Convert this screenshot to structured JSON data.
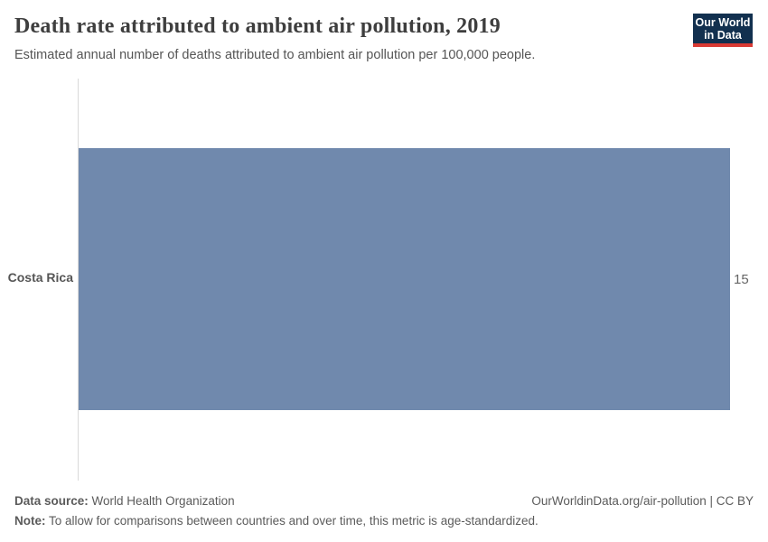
{
  "header": {
    "title": "Death rate attributed to ambient air pollution, 2019",
    "subtitle": "Estimated annual number of deaths attributed to ambient air pollution per 100,000 people.",
    "logo": {
      "line1": "Our World",
      "line2": "in Data",
      "bg_color": "#12304f",
      "accent_color": "#d93a34"
    }
  },
  "chart_data": {
    "type": "bar",
    "orientation": "horizontal",
    "title": "Death rate attributed to ambient air pollution, 2019",
    "categories": [
      "Costa Rica"
    ],
    "values": [
      15
    ],
    "xlim": [
      0,
      15
    ],
    "bar_color": "#7089ad",
    "axis_color": "#d9d9d9",
    "grid": false,
    "legend": "none"
  },
  "footer": {
    "data_source_label": "Data source:",
    "data_source_value": " World Health Organization",
    "note_label": "Note:",
    "note_value": " To allow for comparisons between countries and over time, this metric is age-standardized.",
    "link_text": "OurWorldinData.org/air-pollution | CC BY"
  }
}
